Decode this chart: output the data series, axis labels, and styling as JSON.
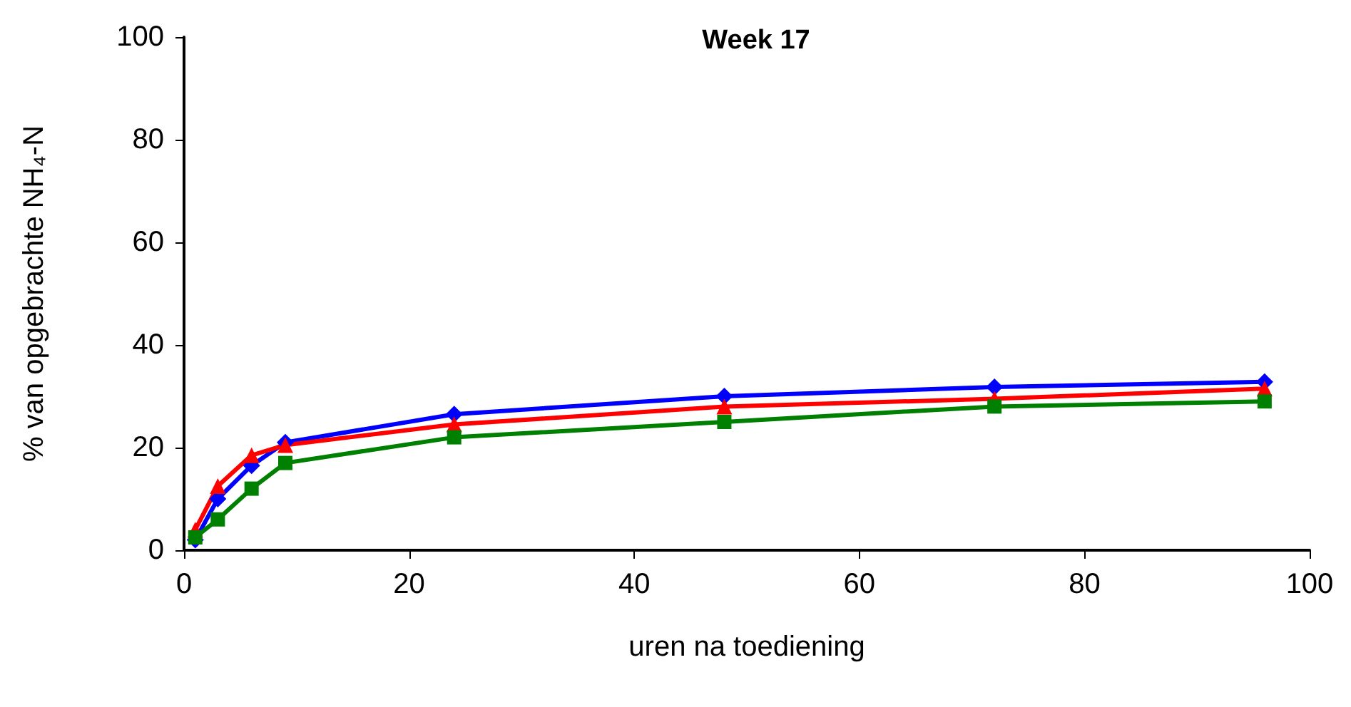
{
  "chart_data": {
    "type": "line",
    "title": "Week 17",
    "xlabel": "uren na toediening",
    "ylabel": "% van opgebrachte NH₄-N",
    "x": [
      1,
      3,
      6,
      9,
      24,
      48,
      72,
      96
    ],
    "series": [
      {
        "color": "#0000ff",
        "marker": "diamond",
        "values": [
          2,
          10,
          16.5,
          21,
          26.5,
          30,
          31.8,
          32.8
        ]
      },
      {
        "color": "#ff0000",
        "marker": "triangle",
        "values": [
          4,
          12.5,
          18.5,
          20.5,
          24.5,
          28,
          29.5,
          31.5
        ]
      },
      {
        "color": "#008000",
        "marker": "square",
        "values": [
          2.5,
          6,
          12,
          17,
          22,
          25,
          28,
          29
        ]
      }
    ],
    "xlim": [
      0,
      100
    ],
    "xticks": [
      0,
      20,
      40,
      60,
      80,
      100
    ],
    "ylim": [
      0,
      100
    ],
    "yticks": [
      0,
      20,
      40,
      60,
      80,
      100
    ],
    "grid": false
  }
}
